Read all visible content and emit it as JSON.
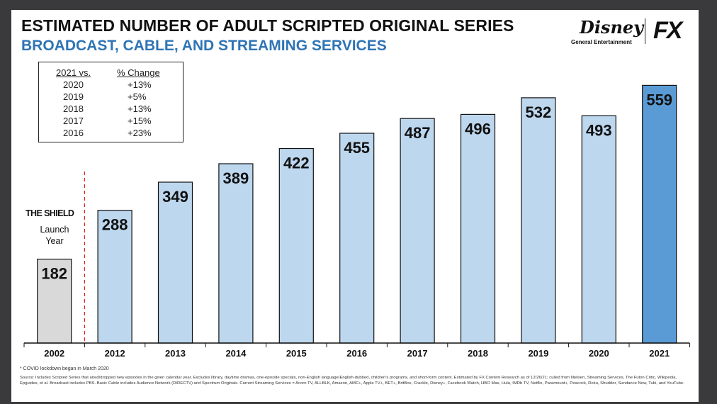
{
  "header": {
    "title": "ESTIMATED NUMBER OF ADULT SCRIPTED ORIGINAL SERIES",
    "subtitle": "BROADCAST, CABLE, AND STREAMING SERVICES"
  },
  "logo": {
    "disney": "Disney",
    "general_entertainment": "General Entertainment",
    "fx": "FX"
  },
  "change_table": {
    "col1_header": "2021 vs.",
    "col2_header": "% Change",
    "rows": [
      {
        "year": "2020",
        "change": "+13%"
      },
      {
        "year": "2019",
        "change": "+5%"
      },
      {
        "year": "2018",
        "change": "+13%"
      },
      {
        "year": "2017",
        "change": "+15%"
      },
      {
        "year": "2016",
        "change": "+23%"
      }
    ]
  },
  "annotation": {
    "the_shield": "THE SHIELD",
    "launch_year": "Launch Year"
  },
  "footnotes": {
    "covid": "* COVID lockdown began in March 2020",
    "source": "Source: Includes Scripted Series that aired/dropped new episodes in the given calendar year. Excludes library, daytime dramas, one-episode specials, non-English language/English-dubbed, children's programs, and short-form content. Estimated by FX Content Research as of 12/26/21; culled from Nielsen, Streaming Services, The Futon Critic, Wikipedia, Epguides, et al. Broadcast includes PBS. Basic Cable includes Audience Network (DIRECTV) and Spectrum Originals. Current Streaming Services = Acorn TV, ALLBLK, Amazon, AMC+, Apple TV+, BET+, BritBox, Crackle, Disney+, Facebook Watch, HBO Max, Hulu, IMDb TV, Netflix, Paramount+, Peacock, Roku, Shudder, Sundance Now, Tubi, and YouTube."
  },
  "chart_data": {
    "type": "bar",
    "categories": [
      "2002",
      "2012",
      "2013",
      "2014",
      "2015",
      "2016",
      "2017",
      "2018",
      "2019",
      "2020",
      "2021"
    ],
    "values": [
      182,
      288,
      349,
      389,
      422,
      455,
      487,
      496,
      532,
      493,
      559
    ],
    "data_labels": [
      "182",
      "288",
      "349",
      "389",
      "422",
      "455",
      "487",
      "496",
      "532",
      "493",
      "559"
    ],
    "ylim": [
      0,
      575
    ],
    "grid": false,
    "bar_colors": [
      "#d9d9d9",
      "#bdd7ee",
      "#bdd7ee",
      "#bdd7ee",
      "#bdd7ee",
      "#bdd7ee",
      "#bdd7ee",
      "#bdd7ee",
      "#bdd7ee",
      "#bdd7ee",
      "#5b9bd5"
    ],
    "separator_color": "#e02020"
  }
}
